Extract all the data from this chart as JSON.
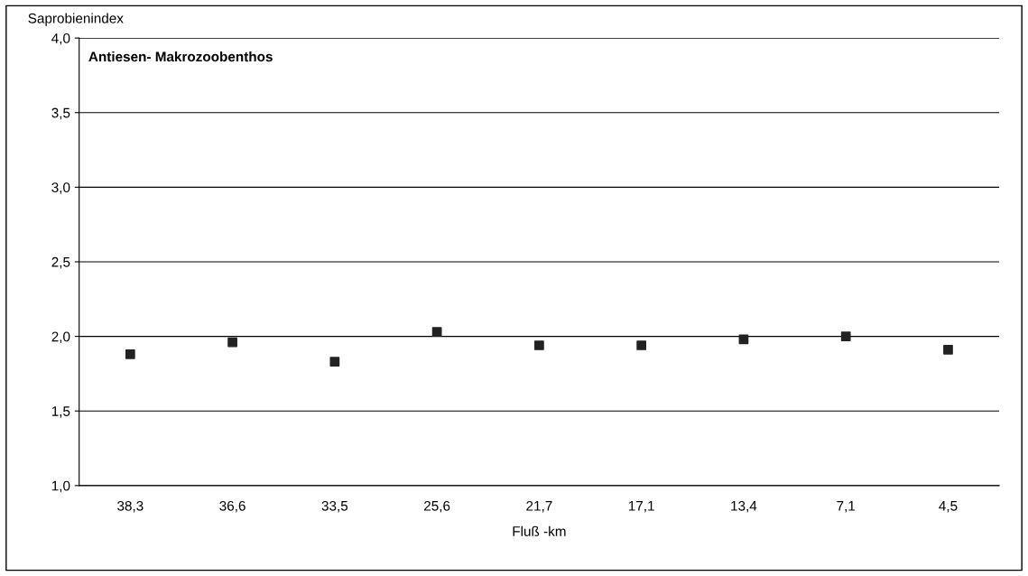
{
  "chart_data": {
    "type": "scatter",
    "title": "Antiesen- Makrozoobenthos",
    "xlabel": "Fluß -km",
    "ylabel": "Saprobienindex",
    "categories": [
      "38,3",
      "36,6",
      "33,5",
      "25,6",
      "21,7",
      "17,1",
      "13,4",
      "7,1",
      "4,5"
    ],
    "values": [
      1.88,
      1.96,
      1.83,
      2.03,
      1.94,
      1.94,
      1.98,
      2.0,
      1.91
    ],
    "color": "#222222",
    "marker": "square",
    "ylim": [
      1.0,
      4.0
    ],
    "yticks": [
      {
        "value": 1.0,
        "label": "1,0"
      },
      {
        "value": 1.5,
        "label": "1,5"
      },
      {
        "value": 2.0,
        "label": "2,0"
      },
      {
        "value": 2.5,
        "label": "2,5"
      },
      {
        "value": 3.0,
        "label": "3,0"
      },
      {
        "value": 3.5,
        "label": "3,5"
      },
      {
        "value": 4.0,
        "label": "4,0"
      }
    ],
    "grid": "y",
    "legend": false
  }
}
